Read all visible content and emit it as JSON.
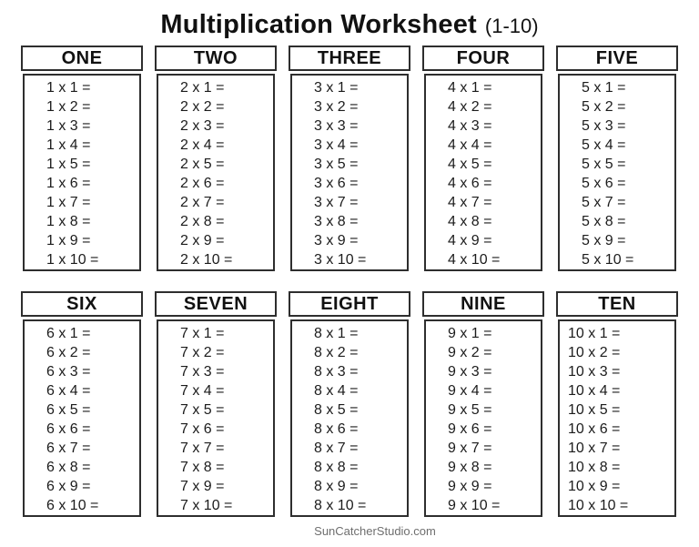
{
  "page": {
    "title_main": "Multiplication Worksheet",
    "title_suffix": "(1-10)",
    "footer": "SunCatcherStudio.com"
  },
  "colors": {
    "background": "#ffffff",
    "text": "#1c1c1c",
    "border": "#2e2e2e",
    "footer_text": "#6e6e6e"
  },
  "tables": [
    {
      "label": "ONE",
      "factor": 1,
      "problems": [
        "1 x 1 =",
        "1 x 2 =",
        "1 x 3 =",
        "1 x 4 =",
        "1 x 5 =",
        "1 x 6 =",
        "1 x 7 =",
        "1 x 8 =",
        "1 x 9 =",
        "1 x 10 ="
      ]
    },
    {
      "label": "TWO",
      "factor": 2,
      "problems": [
        "2 x 1 =",
        "2 x 2 =",
        "2 x 3 =",
        "2 x 4 =",
        "2 x 5 =",
        "2 x 6 =",
        "2 x 7 =",
        "2 x 8 =",
        "2 x 9 =",
        "2 x 10 ="
      ]
    },
    {
      "label": "THREE",
      "factor": 3,
      "problems": [
        "3 x 1 =",
        "3 x 2 =",
        "3 x 3 =",
        "3 x 4 =",
        "3 x 5 =",
        "3 x 6 =",
        "3 x 7 =",
        "3 x 8 =",
        "3 x 9 =",
        "3 x 10 ="
      ]
    },
    {
      "label": "FOUR",
      "factor": 4,
      "problems": [
        "4 x 1 =",
        "4 x 2 =",
        "4 x 3 =",
        "4 x 4 =",
        "4 x 5 =",
        "4 x 6 =",
        "4 x 7 =",
        "4 x 8 =",
        "4 x 9 =",
        "4 x 10 ="
      ]
    },
    {
      "label": "FIVE",
      "factor": 5,
      "problems": [
        "5 x 1 =",
        "5 x 2 =",
        "5 x 3 =",
        "5 x 4 =",
        "5 x 5 =",
        "5 x 6 =",
        "5 x 7 =",
        "5 x 8 =",
        "5 x 9 =",
        "5 x 10 ="
      ]
    },
    {
      "label": "SIX",
      "factor": 6,
      "problems": [
        "6 x 1 =",
        "6 x 2 =",
        "6 x 3 =",
        "6 x 4 =",
        "6 x 5 =",
        "6 x 6 =",
        "6 x 7 =",
        "6 x 8 =",
        "6 x 9 =",
        "6 x 10 ="
      ]
    },
    {
      "label": "SEVEN",
      "factor": 7,
      "problems": [
        "7 x 1 =",
        "7 x 2 =",
        "7 x 3 =",
        "7 x 4 =",
        "7 x 5 =",
        "7 x 6 =",
        "7 x 7 =",
        "7 x 8 =",
        "7 x 9 =",
        "7 x 10 ="
      ]
    },
    {
      "label": "EIGHT",
      "factor": 8,
      "problems": [
        "8 x 1 =",
        "8 x 2 =",
        "8 x 3 =",
        "8 x 4 =",
        "8 x 5 =",
        "8 x 6 =",
        "8 x 7 =",
        "8 x 8 =",
        "8 x 9 =",
        "8 x 10 ="
      ]
    },
    {
      "label": "NINE",
      "factor": 9,
      "problems": [
        "9 x 1 =",
        "9 x 2 =",
        "9 x 3 =",
        "9 x 4 =",
        "9 x 5 =",
        "9 x 6 =",
        "9 x 7 =",
        "9 x 8 =",
        "9 x 9 =",
        "9 x 10 ="
      ]
    },
    {
      "label": "TEN",
      "factor": 10,
      "problems": [
        "10 x 1 =",
        "10 x 2 =",
        "10 x 3 =",
        "10 x 4 =",
        "10 x 5 =",
        "10 x 6 =",
        "10 x 7 =",
        "10 x 8 =",
        "10 x 9 =",
        "10 x 10 ="
      ]
    }
  ]
}
